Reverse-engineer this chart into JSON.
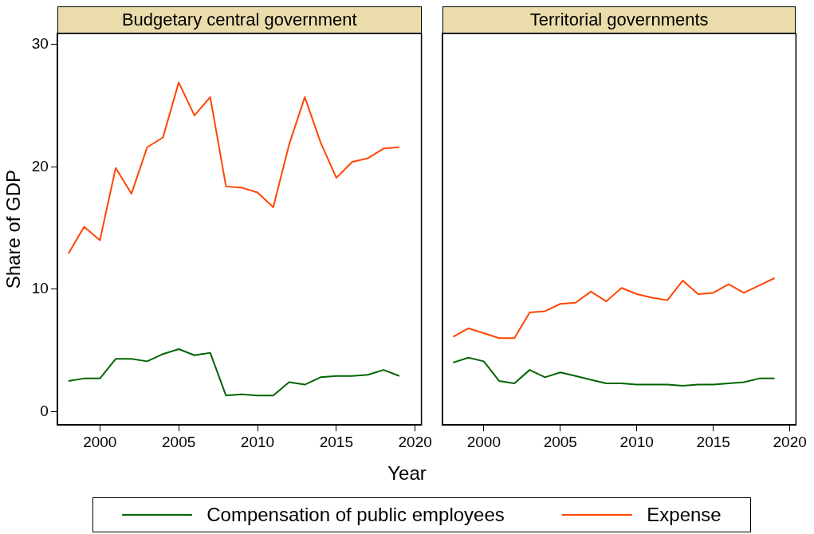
{
  "chart_data": [
    {
      "type": "line",
      "title": "Budgetary central government",
      "xlabel": "Year",
      "ylabel": "Share of GDP",
      "legend": "bottom",
      "grid": false,
      "x": [
        1998,
        1999,
        2000,
        2001,
        2002,
        2003,
        2004,
        2005,
        2006,
        2007,
        2008,
        2009,
        2010,
        2011,
        2012,
        2013,
        2014,
        2015,
        2016,
        2017,
        2018,
        2019
      ],
      "xlim": [
        1997.3,
        2020.4
      ],
      "xticks": [
        2000,
        2005,
        2010,
        2015,
        2020
      ],
      "ylim": [
        -1.1,
        30.9
      ],
      "yticks": [
        0,
        10,
        20,
        30
      ],
      "series": [
        {
          "name": "Compensation of public employees",
          "color": "#006400",
          "values": [
            2.5,
            2.7,
            2.7,
            4.3,
            4.3,
            4.1,
            4.7,
            5.1,
            4.6,
            4.8,
            1.3,
            1.4,
            1.3,
            1.3,
            2.4,
            2.2,
            2.8,
            2.9,
            2.9,
            3.0,
            3.4,
            2.9
          ]
        },
        {
          "name": "Expense",
          "color": "#ff4500",
          "values": [
            12.9,
            15.1,
            14.0,
            19.9,
            17.8,
            21.6,
            22.4,
            26.9,
            24.2,
            25.7,
            18.4,
            18.3,
            17.9,
            16.7,
            21.8,
            25.7,
            22.0,
            19.1,
            20.4,
            20.7,
            21.5,
            21.6
          ]
        }
      ]
    },
    {
      "type": "line",
      "title": "Territorial governments",
      "grid": false,
      "tick_labels": "x",
      "x": [
        1998,
        1999,
        2000,
        2001,
        2002,
        2003,
        2004,
        2005,
        2006,
        2007,
        2008,
        2009,
        2010,
        2011,
        2012,
        2013,
        2014,
        2015,
        2016,
        2017,
        2018,
        2019
      ],
      "xlim": [
        1997.3,
        2020.4
      ],
      "xticks": [
        2000,
        2005,
        2010,
        2015,
        2020
      ],
      "ylim": [
        -1.1,
        30.9
      ],
      "yticks": [
        0,
        10,
        20,
        30
      ],
      "series": [
        {
          "color": "#006400",
          "values": [
            4.0,
            4.4,
            4.1,
            2.5,
            2.3,
            3.4,
            2.8,
            3.2,
            2.9,
            2.6,
            2.3,
            2.3,
            2.2,
            2.2,
            2.2,
            2.1,
            2.2,
            2.2,
            2.3,
            2.4,
            2.7,
            2.7
          ]
        },
        {
          "color": "#ff4500",
          "values": [
            6.1,
            6.8,
            6.4,
            6.0,
            6.0,
            8.1,
            8.2,
            8.8,
            8.9,
            9.8,
            9.0,
            10.1,
            9.6,
            9.3,
            9.1,
            10.7,
            9.6,
            9.7,
            10.4,
            9.7,
            10.3,
            10.9
          ]
        }
      ]
    }
  ]
}
